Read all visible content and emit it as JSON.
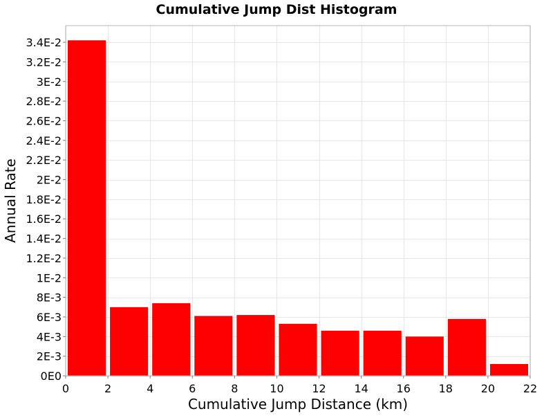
{
  "chart_data": {
    "type": "bar",
    "title": "Cumulative Jump Dist Histogram",
    "xlabel": "Cumulative Jump Distance (km)",
    "ylabel": "Annual Rate",
    "bar_color": "#ff0000",
    "grid": true,
    "xlim": [
      0,
      22
    ],
    "ylim": [
      0,
      0.0357
    ],
    "x_ticks": [
      {
        "value": 0,
        "label": "0"
      },
      {
        "value": 2,
        "label": "2"
      },
      {
        "value": 4,
        "label": "4"
      },
      {
        "value": 6,
        "label": "6"
      },
      {
        "value": 8,
        "label": "8"
      },
      {
        "value": 10,
        "label": "10"
      },
      {
        "value": 12,
        "label": "12"
      },
      {
        "value": 14,
        "label": "14"
      },
      {
        "value": 16,
        "label": "16"
      },
      {
        "value": 18,
        "label": "18"
      },
      {
        "value": 20,
        "label": "20"
      },
      {
        "value": 22,
        "label": "22"
      }
    ],
    "y_ticks": [
      {
        "value": 0,
        "label": "0E0"
      },
      {
        "value": 0.002,
        "label": "2E-3"
      },
      {
        "value": 0.004,
        "label": "4E-3"
      },
      {
        "value": 0.006,
        "label": "6E-3"
      },
      {
        "value": 0.008,
        "label": "8E-3"
      },
      {
        "value": 0.01,
        "label": "1E-2"
      },
      {
        "value": 0.012,
        "label": "1.2E-2"
      },
      {
        "value": 0.014,
        "label": "1.4E-2"
      },
      {
        "value": 0.016,
        "label": "1.6E-2"
      },
      {
        "value": 0.018,
        "label": "1.8E-2"
      },
      {
        "value": 0.02,
        "label": "2E-2"
      },
      {
        "value": 0.022,
        "label": "2.2E-2"
      },
      {
        "value": 0.024,
        "label": "2.4E-2"
      },
      {
        "value": 0.026,
        "label": "2.6E-2"
      },
      {
        "value": 0.028,
        "label": "2.8E-2"
      },
      {
        "value": 0.03,
        "label": "3E-2"
      },
      {
        "value": 0.032,
        "label": "3.2E-2"
      },
      {
        "value": 0.034,
        "label": "3.4E-2"
      }
    ],
    "bins": [
      {
        "x0": 0,
        "x1": 2,
        "value": 0.0342
      },
      {
        "x0": 2,
        "x1": 4,
        "value": 0.007
      },
      {
        "x0": 4,
        "x1": 6,
        "value": 0.0074
      },
      {
        "x0": 6,
        "x1": 8,
        "value": 0.0061
      },
      {
        "x0": 8,
        "x1": 10,
        "value": 0.0062
      },
      {
        "x0": 10,
        "x1": 12,
        "value": 0.0053
      },
      {
        "x0": 12,
        "x1": 14,
        "value": 0.0046
      },
      {
        "x0": 14,
        "x1": 16,
        "value": 0.0046
      },
      {
        "x0": 16,
        "x1": 18,
        "value": 0.004
      },
      {
        "x0": 18,
        "x1": 20,
        "value": 0.0058
      },
      {
        "x0": 20,
        "x1": 22,
        "value": 0.0012
      }
    ]
  }
}
